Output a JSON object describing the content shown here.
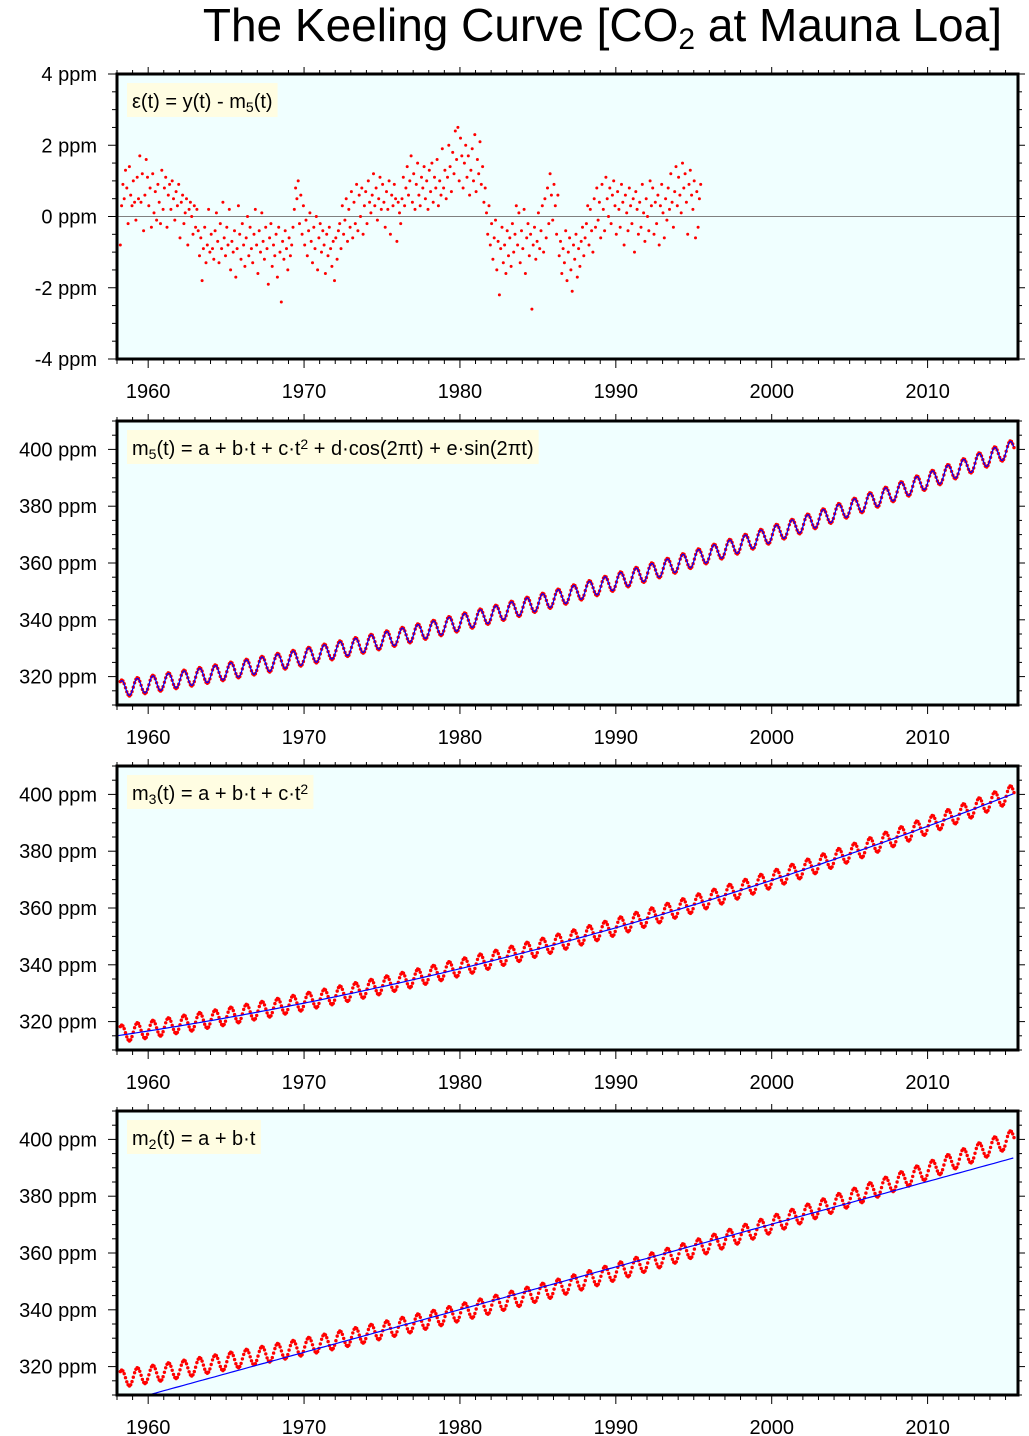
{
  "title": {
    "prefix": "The Keeling Curve [CO",
    "subscript": "2",
    "suffix": " at Mauna Loa]"
  },
  "colors": {
    "panel_background": "#f0ffff",
    "observed_points": "#ff0000",
    "model_line": "#0000ff",
    "zero_line": "#808080",
    "label_box": "#fffde2"
  },
  "chart_data": [
    {
      "type": "scatter",
      "id": "residual",
      "label": {
        "parts": [
          [
            "ε(t) = y(t) - m",
            "n"
          ],
          [
            "5",
            "sub"
          ],
          [
            "(t)",
            "n"
          ]
        ]
      },
      "xlim": [
        1958,
        2015.8
      ],
      "ylim": [
        -4,
        4
      ],
      "x_ticks": [
        1960,
        1970,
        1980,
        1990,
        2000,
        2010
      ],
      "y_ticks": [
        -4,
        -2,
        0,
        2,
        4
      ],
      "y_tick_labels": [
        "-4 ppm",
        "-2 ppm",
        "0 ppm",
        "2 ppm",
        "4 ppm"
      ],
      "zero_line": true,
      "series": [
        {
          "kind": "points",
          "x_start": 1958.21,
          "x_step": 0.0833,
          "values": [
            -0.8,
            0.3,
            0.9,
            0.5,
            1.3,
            0.8,
            -0.2,
            1.4,
            0.6,
            0.3,
            1.0,
            0.4,
            -0.1,
            1.1,
            0.5,
            1.7,
            0.4,
            1.2,
            -0.4,
            0.6,
            1.6,
            1.1,
            0.3,
            0.8,
            -0.3,
            1.2,
            0.1,
            0.7,
            -0.1,
            0.9,
            0.4,
            -0.2,
            1.3,
            0.2,
            0.8,
            1.1,
            -0.3,
            0.6,
            0.9,
            0.2,
            1.0,
            0.5,
            -0.1,
            0.7,
            0.3,
            0.9,
            -0.6,
            0.4,
            0.6,
            -0.2,
            0.1,
            0.5,
            -0.8,
            0.2,
            0.4,
            0.0,
            -0.5,
            0.3,
            -0.3,
            0.2,
            -0.4,
            -1.1,
            -0.6,
            -1.8,
            -0.9,
            -0.3,
            -1.3,
            -0.8,
            0.2,
            -1.0,
            -0.5,
            -0.9,
            -1.2,
            -0.4,
            0.1,
            -0.7,
            -1.3,
            -0.2,
            -0.9,
            0.4,
            -0.6,
            -1.1,
            -0.3,
            -0.8,
            0.2,
            -1.5,
            -0.7,
            -1.0,
            -0.4,
            -1.7,
            -0.9,
            0.3,
            -0.5,
            -1.2,
            -0.2,
            -0.8,
            -1.4,
            -0.6,
            0.0,
            -1.1,
            -0.3,
            -0.9,
            -1.3,
            -0.5,
            0.2,
            -0.8,
            -1.6,
            -0.4,
            -1.0,
            0.1,
            -0.7,
            -1.2,
            -0.3,
            -0.9,
            -1.9,
            -0.6,
            -0.2,
            -1.4,
            -0.8,
            -1.1,
            -0.5,
            -1.7,
            -0.3,
            -1.0,
            -2.4,
            -0.7,
            -1.2,
            -0.4,
            -0.9,
            -1.5,
            -0.6,
            -1.1,
            -0.8,
            -0.3,
            0.2,
            0.8,
            0.5,
            1.0,
            -0.2,
            0.6,
            -0.5,
            0.3,
            -0.8,
            -0.1,
            -1.1,
            -0.4,
            0.1,
            -0.7,
            -1.3,
            -0.3,
            -0.9,
            0.0,
            -1.5,
            -0.6,
            -0.2,
            -1.0,
            -0.4,
            -0.8,
            -1.6,
            -0.5,
            -1.1,
            -0.3,
            -0.9,
            -1.4,
            -0.7,
            -1.8,
            -0.6,
            -1.2,
            -0.4,
            -0.2,
            -0.9,
            0.3,
            -0.5,
            -0.1,
            0.5,
            -0.7,
            0.2,
            -0.3,
            0.7,
            -0.6,
            0.4,
            -0.2,
            0.9,
            -0.4,
            0.6,
            0.0,
            0.8,
            -0.5,
            0.3,
            0.7,
            -0.2,
            1.0,
            0.4,
            0.1,
            0.6,
            1.2,
            0.3,
            0.8,
            -0.1,
            0.5,
            1.1,
            0.2,
            0.9,
            0.4,
            -0.3,
            0.7,
            0.2,
            1.0,
            -0.5,
            0.6,
            0.3,
            0.9,
            0.5,
            -0.7,
            0.4,
            0.1,
            -0.2,
            0.5,
            1.1,
            0.3,
            0.8,
            1.4,
            0.6,
            1.0,
            1.7,
            0.4,
            1.2,
            0.2,
            0.9,
            1.5,
            0.6,
            0.3,
            1.1,
            0.8,
            1.4,
            0.5,
            1.0,
            0.2,
            1.3,
            0.7,
            1.5,
            0.4,
            1.1,
            0.8,
            1.6,
            0.3,
            1.0,
            0.6,
            1.9,
            0.8,
            1.3,
            0.5,
            1.1,
            2.0,
            1.4,
            0.7,
            1.8,
            1.2,
            2.4,
            1.6,
            2.5,
            1.0,
            2.2,
            1.7,
            0.8,
            1.5,
            2.0,
            1.1,
            1.7,
            0.6,
            1.3,
            1.9,
            1.0,
            2.3,
            0.7,
            1.6,
            1.2,
            2.1,
            0.9,
            1.4,
            0.4,
            0.8,
            0.1,
            -0.5,
            0.3,
            -0.8,
            -0.2,
            -1.2,
            -0.6,
            -0.1,
            -1.5,
            -0.7,
            -2.2,
            -0.9,
            -0.3,
            -1.3,
            -0.8,
            -1.6,
            -0.4,
            -1.1,
            -0.6,
            -1.4,
            -0.2,
            -1.0,
            -0.5,
            0.3,
            -0.8,
            0.1,
            -1.3,
            -0.4,
            -0.9,
            0.2,
            -1.6,
            -0.6,
            -0.2,
            -1.1,
            -0.5,
            -2.6,
            -0.8,
            -0.3,
            -1.2,
            -0.7,
            0.1,
            -0.9,
            -0.4,
            0.3,
            -1.0,
            0.5,
            -0.6,
            0.8,
            -0.2,
            1.2,
            0.6,
            -0.1,
            0.9,
            0.3,
            -0.5,
            0.6,
            -1.1,
            -0.7,
            -1.6,
            -0.9,
            -1.3,
            -0.4,
            -1.8,
            -1.0,
            -0.6,
            -1.5,
            -2.1,
            -0.8,
            -1.2,
            -0.5,
            -1.7,
            -0.9,
            -1.4,
            -0.7,
            -0.3,
            -1.1,
            -0.6,
            -0.2,
            0.3,
            -0.8,
            0.2,
            -0.4,
            -1.0,
            0.5,
            -0.3,
            0.8,
            -0.1,
            0.4,
            -0.6,
            0.9,
            0.2,
            -0.4,
            1.1,
            0.5,
            0.0,
            0.8,
            -0.2,
            0.6,
            1.0,
            0.3,
            -0.5,
            0.7,
            0.2,
            -0.3,
            0.9,
            0.4,
            -0.8,
            0.6,
            0.1,
            -0.4,
            0.8,
            0.3,
            -0.2,
            0.5,
            -1.0,
            0.7,
            0.2,
            -0.5,
            0.4,
            -0.3,
            0.9,
            0.1,
            -0.7,
            0.5,
            0.0,
            -0.4,
            1.0,
            0.3,
            0.8,
            -0.5,
            0.4,
            -0.2,
            0.6,
            -0.8,
            0.3,
            0.9,
            0.1,
            -0.6,
            0.5,
            -0.1,
            0.8,
            0.2,
            1.2,
            0.4,
            -0.3,
            0.7,
            1.4,
            0.3,
            1.1,
            0.6,
            0.1,
            1.5,
            0.8,
            1.2,
            0.4,
            -0.5,
            0.9,
            1.3,
            0.6,
            0.2,
            1.0,
            -0.6,
            0.7,
            -0.3,
            0.5,
            0.9
          ]
        }
      ]
    },
    {
      "type": "line",
      "id": "m5",
      "label": {
        "parts": [
          [
            "m",
            "n"
          ],
          [
            "5",
            "sub"
          ],
          [
            "(t) = a + b·t + c·t",
            "n"
          ],
          [
            "2",
            "sup"
          ],
          [
            " + d·cos(2πt) + e·sin(2πt)",
            "n"
          ]
        ]
      },
      "xlim": [
        1958,
        2015.8
      ],
      "ylim": [
        310,
        410
      ],
      "x_ticks": [
        1960,
        1970,
        1980,
        1990,
        2000,
        2010
      ],
      "y_ticks": [
        320,
        340,
        360,
        380,
        400
      ],
      "y_tick_labels": [
        "320 ppm",
        "340 ppm",
        "360 ppm",
        "380 ppm",
        "400 ppm"
      ],
      "series": [
        {
          "kind": "observed_points",
          "x_start": 1958.21,
          "x_end": 2015.54,
          "y_start": 315.7,
          "y_end": 400.5,
          "curvature": 0.0115,
          "seasonal_amplitude": 3.0,
          "note_monthly": true
        },
        {
          "kind": "model_curve",
          "x_start": 1958.21,
          "x_end": 2015.54,
          "y_start": 315.7,
          "y_end": 400.5,
          "curvature": 0.0115,
          "seasonal_amplitude": 2.8
        }
      ]
    },
    {
      "type": "line",
      "id": "m3",
      "label": {
        "parts": [
          [
            "m",
            "n"
          ],
          [
            "3",
            "sub"
          ],
          [
            "(t) = a + b·t + c·t",
            "n"
          ],
          [
            "2",
            "sup"
          ]
        ]
      },
      "xlim": [
        1958,
        2015.8
      ],
      "ylim": [
        310,
        410
      ],
      "x_ticks": [
        1960,
        1970,
        1980,
        1990,
        2000,
        2010
      ],
      "y_ticks": [
        320,
        340,
        360,
        380,
        400
      ],
      "y_tick_labels": [
        "320 ppm",
        "340 ppm",
        "360 ppm",
        "380 ppm",
        "400 ppm"
      ],
      "series": [
        {
          "kind": "observed_points",
          "x_start": 1958.21,
          "x_end": 2015.54,
          "y_start": 315.7,
          "y_end": 400.5,
          "curvature": 0.0115,
          "seasonal_amplitude": 3.0
        },
        {
          "kind": "model_curve",
          "x_start": 1958.0,
          "x_end": 2015.54,
          "y_start": 315.0,
          "y_end": 400.3,
          "curvature": 0.0115,
          "seasonal_amplitude": 0
        }
      ]
    },
    {
      "type": "line",
      "id": "m2",
      "label": {
        "parts": [
          [
            "m",
            "n"
          ],
          [
            "2",
            "sub"
          ],
          [
            "(t) = a + b·t",
            "n"
          ]
        ]
      },
      "xlim": [
        1958,
        2015.8
      ],
      "ylim": [
        310,
        410
      ],
      "x_ticks": [
        1960,
        1970,
        1980,
        1990,
        2000,
        2010
      ],
      "y_ticks": [
        320,
        340,
        360,
        380,
        400
      ],
      "y_tick_labels": [
        "320 ppm",
        "340 ppm",
        "360 ppm",
        "380 ppm",
        "400 ppm"
      ],
      "series": [
        {
          "kind": "observed_points",
          "x_start": 1958.21,
          "x_end": 2015.54,
          "y_start": 315.7,
          "y_end": 400.5,
          "curvature": 0.0115,
          "seasonal_amplitude": 3.0
        },
        {
          "kind": "model_line",
          "x_start": 1960.0,
          "x_end": 2015.54,
          "y_start": 310.0,
          "y_end": 393.5,
          "curvature": 0,
          "seasonal_amplitude": 0
        }
      ]
    }
  ]
}
